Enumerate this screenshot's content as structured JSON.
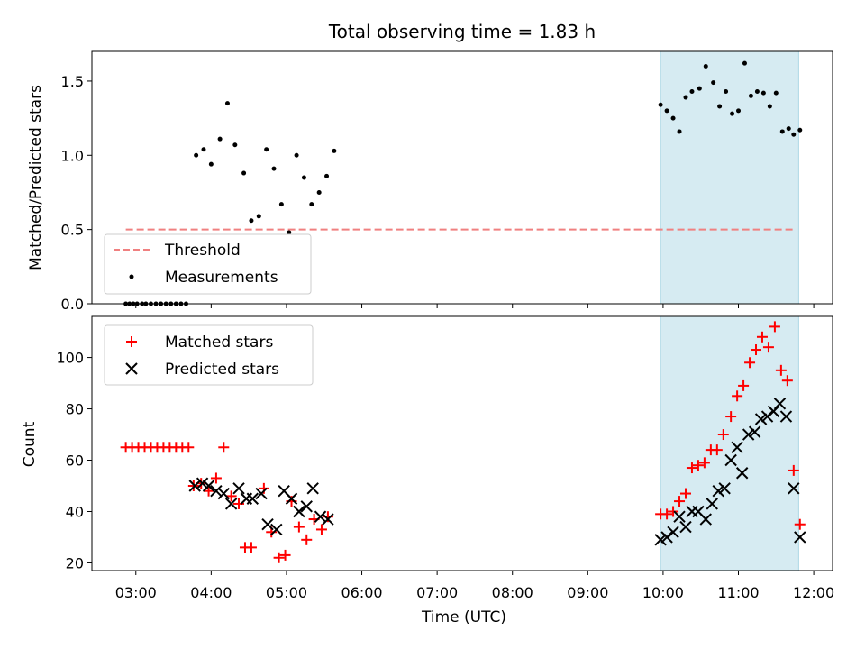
{
  "chart_data": [
    {
      "type": "scatter",
      "title": "Total observing time = 1.83 h",
      "xlabel": "",
      "ylabel": "Matched/Predicted stars",
      "xlim": [
        "02:25",
        "12:15"
      ],
      "ylim": [
        0,
        1.7
      ],
      "yticks": [
        "0.0",
        "0.5",
        "1.0",
        "1.5"
      ],
      "shaded_region": {
        "x": [
          "09:58",
          "11:48"
        ],
        "color": "#add8e6"
      },
      "threshold": {
        "name": "Threshold",
        "y": 0.5,
        "x": [
          "02:52",
          "11:46"
        ],
        "color": "#f08080"
      },
      "series": [
        {
          "name": "Measurements",
          "color": "#000000",
          "marker": "dot",
          "points": [
            {
              "x": "02:52",
              "y": 0
            },
            {
              "x": "02:55",
              "y": 0
            },
            {
              "x": "02:58",
              "y": 0
            },
            {
              "x": "03:01",
              "y": 0
            },
            {
              "x": "03:05",
              "y": 0
            },
            {
              "x": "03:08",
              "y": 0
            },
            {
              "x": "03:12",
              "y": 0
            },
            {
              "x": "03:16",
              "y": 0
            },
            {
              "x": "03:20",
              "y": 0
            },
            {
              "x": "03:24",
              "y": 0
            },
            {
              "x": "03:28",
              "y": 0
            },
            {
              "x": "03:32",
              "y": 0
            },
            {
              "x": "03:36",
              "y": 0
            },
            {
              "x": "03:40",
              "y": 0
            },
            {
              "x": "03:48",
              "y": 1.0
            },
            {
              "x": "03:54",
              "y": 1.04
            },
            {
              "x": "04:00",
              "y": 0.94
            },
            {
              "x": "04:07",
              "y": 1.11
            },
            {
              "x": "04:13",
              "y": 1.35
            },
            {
              "x": "04:19",
              "y": 1.07
            },
            {
              "x": "04:26",
              "y": 0.88
            },
            {
              "x": "04:32",
              "y": 0.56
            },
            {
              "x": "04:38",
              "y": 0.59
            },
            {
              "x": "04:44",
              "y": 1.04
            },
            {
              "x": "04:50",
              "y": 0.91
            },
            {
              "x": "04:56",
              "y": 0.67
            },
            {
              "x": "05:02",
              "y": 0.48
            },
            {
              "x": "05:08",
              "y": 1.0
            },
            {
              "x": "05:14",
              "y": 0.85
            },
            {
              "x": "05:20",
              "y": 0.67
            },
            {
              "x": "05:26",
              "y": 0.75
            },
            {
              "x": "05:32",
              "y": 0.86
            },
            {
              "x": "05:38",
              "y": 1.03
            },
            {
              "x": "09:58",
              "y": 1.34
            },
            {
              "x": "10:03",
              "y": 1.3
            },
            {
              "x": "10:08",
              "y": 1.25
            },
            {
              "x": "10:13",
              "y": 1.16
            },
            {
              "x": "10:18",
              "y": 1.39
            },
            {
              "x": "10:23",
              "y": 1.43
            },
            {
              "x": "10:29",
              "y": 1.45
            },
            {
              "x": "10:34",
              "y": 1.6
            },
            {
              "x": "10:40",
              "y": 1.49
            },
            {
              "x": "10:45",
              "y": 1.33
            },
            {
              "x": "10:50",
              "y": 1.43
            },
            {
              "x": "10:55",
              "y": 1.28
            },
            {
              "x": "11:00",
              "y": 1.3
            },
            {
              "x": "11:05",
              "y": 1.62
            },
            {
              "x": "11:10",
              "y": 1.4
            },
            {
              "x": "11:15",
              "y": 1.43
            },
            {
              "x": "11:20",
              "y": 1.42
            },
            {
              "x": "11:25",
              "y": 1.33
            },
            {
              "x": "11:30",
              "y": 1.42
            },
            {
              "x": "11:35",
              "y": 1.16
            },
            {
              "x": "11:40",
              "y": 1.18
            },
            {
              "x": "11:44",
              "y": 1.14
            },
            {
              "x": "11:49",
              "y": 1.17
            }
          ]
        }
      ],
      "legend": {
        "placement": "lower-left",
        "entries": [
          "Threshold",
          "Measurements"
        ]
      }
    },
    {
      "type": "scatter",
      "title": "",
      "xlabel": "Time (UTC)",
      "ylabel": "Count",
      "xlim": [
        "02:25",
        "12:15"
      ],
      "ylim": [
        17,
        116
      ],
      "xticks": [
        "03:00",
        "04:00",
        "05:00",
        "06:00",
        "07:00",
        "08:00",
        "09:00",
        "10:00",
        "11:00",
        "12:00"
      ],
      "yticks": [
        "20",
        "40",
        "60",
        "80",
        "100"
      ],
      "shaded_region": {
        "x": [
          "09:58",
          "11:48"
        ],
        "color": "#add8e6"
      },
      "series": [
        {
          "name": "Matched stars",
          "color": "#ff0000",
          "marker": "plus",
          "points": [
            {
              "x": "02:52",
              "y": 65
            },
            {
              "x": "02:57",
              "y": 65
            },
            {
              "x": "03:02",
              "y": 65
            },
            {
              "x": "03:07",
              "y": 65
            },
            {
              "x": "03:12",
              "y": 65
            },
            {
              "x": "03:17",
              "y": 65
            },
            {
              "x": "03:22",
              "y": 65
            },
            {
              "x": "03:27",
              "y": 65
            },
            {
              "x": "03:32",
              "y": 65
            },
            {
              "x": "03:37",
              "y": 65
            },
            {
              "x": "03:42",
              "y": 65
            },
            {
              "x": "03:46",
              "y": 50
            },
            {
              "x": "03:52",
              "y": 51
            },
            {
              "x": "03:58",
              "y": 48
            },
            {
              "x": "04:04",
              "y": 53
            },
            {
              "x": "04:10",
              "y": 65
            },
            {
              "x": "04:16",
              "y": 46
            },
            {
              "x": "04:22",
              "y": 43
            },
            {
              "x": "04:27",
              "y": 26
            },
            {
              "x": "04:32",
              "y": 26
            },
            {
              "x": "04:42",
              "y": 49
            },
            {
              "x": "04:48",
              "y": 32
            },
            {
              "x": "04:54",
              "y": 22
            },
            {
              "x": "04:59",
              "y": 23
            },
            {
              "x": "05:04",
              "y": 44
            },
            {
              "x": "05:10",
              "y": 34
            },
            {
              "x": "05:16",
              "y": 29
            },
            {
              "x": "05:22",
              "y": 37
            },
            {
              "x": "05:28",
              "y": 33
            },
            {
              "x": "05:33",
              "y": 38
            },
            {
              "x": "09:58",
              "y": 39
            },
            {
              "x": "10:03",
              "y": 39
            },
            {
              "x": "10:08",
              "y": 40
            },
            {
              "x": "10:13",
              "y": 44
            },
            {
              "x": "10:18",
              "y": 47
            },
            {
              "x": "10:23",
              "y": 57
            },
            {
              "x": "10:28",
              "y": 58
            },
            {
              "x": "10:33",
              "y": 59
            },
            {
              "x": "10:38",
              "y": 64
            },
            {
              "x": "10:43",
              "y": 64
            },
            {
              "x": "10:48",
              "y": 70
            },
            {
              "x": "10:54",
              "y": 77
            },
            {
              "x": "10:59",
              "y": 85
            },
            {
              "x": "11:04",
              "y": 89
            },
            {
              "x": "11:09",
              "y": 98
            },
            {
              "x": "11:14",
              "y": 103
            },
            {
              "x": "11:19",
              "y": 108
            },
            {
              "x": "11:24",
              "y": 104
            },
            {
              "x": "11:29",
              "y": 112
            },
            {
              "x": "11:34",
              "y": 95
            },
            {
              "x": "11:39",
              "y": 91
            },
            {
              "x": "11:44",
              "y": 56
            },
            {
              "x": "11:49",
              "y": 35
            }
          ]
        },
        {
          "name": "Predicted stars",
          "color": "#000000",
          "marker": "x",
          "points": [
            {
              "x": "03:47",
              "y": 50
            },
            {
              "x": "03:53",
              "y": 51
            },
            {
              "x": "03:58",
              "y": 50
            },
            {
              "x": "04:04",
              "y": 48
            },
            {
              "x": "04:10",
              "y": 47
            },
            {
              "x": "04:16",
              "y": 43
            },
            {
              "x": "04:22",
              "y": 49
            },
            {
              "x": "04:28",
              "y": 45
            },
            {
              "x": "04:33",
              "y": 45
            },
            {
              "x": "04:40",
              "y": 47
            },
            {
              "x": "04:45",
              "y": 35
            },
            {
              "x": "04:52",
              "y": 33
            },
            {
              "x": "04:58",
              "y": 48
            },
            {
              "x": "05:04",
              "y": 45
            },
            {
              "x": "05:10",
              "y": 40
            },
            {
              "x": "05:16",
              "y": 42
            },
            {
              "x": "05:21",
              "y": 49
            },
            {
              "x": "05:27",
              "y": 38
            },
            {
              "x": "05:33",
              "y": 37
            },
            {
              "x": "09:58",
              "y": 29
            },
            {
              "x": "10:03",
              "y": 30
            },
            {
              "x": "10:08",
              "y": 32
            },
            {
              "x": "10:13",
              "y": 38
            },
            {
              "x": "10:18",
              "y": 34
            },
            {
              "x": "10:23",
              "y": 40
            },
            {
              "x": "10:28",
              "y": 40
            },
            {
              "x": "10:34",
              "y": 37
            },
            {
              "x": "10:39",
              "y": 43
            },
            {
              "x": "10:44",
              "y": 48
            },
            {
              "x": "10:49",
              "y": 49
            },
            {
              "x": "10:54",
              "y": 60
            },
            {
              "x": "10:59",
              "y": 65
            },
            {
              "x": "11:03",
              "y": 55
            },
            {
              "x": "11:08",
              "y": 70
            },
            {
              "x": "11:13",
              "y": 71
            },
            {
              "x": "11:18",
              "y": 76
            },
            {
              "x": "11:23",
              "y": 77
            },
            {
              "x": "11:28",
              "y": 79
            },
            {
              "x": "11:33",
              "y": 82
            },
            {
              "x": "11:38",
              "y": 77
            },
            {
              "x": "11:44",
              "y": 49
            },
            {
              "x": "11:49",
              "y": 30
            }
          ]
        }
      ],
      "legend": {
        "placement": "top-left",
        "entries": [
          "Matched stars",
          "Predicted stars"
        ]
      }
    }
  ]
}
